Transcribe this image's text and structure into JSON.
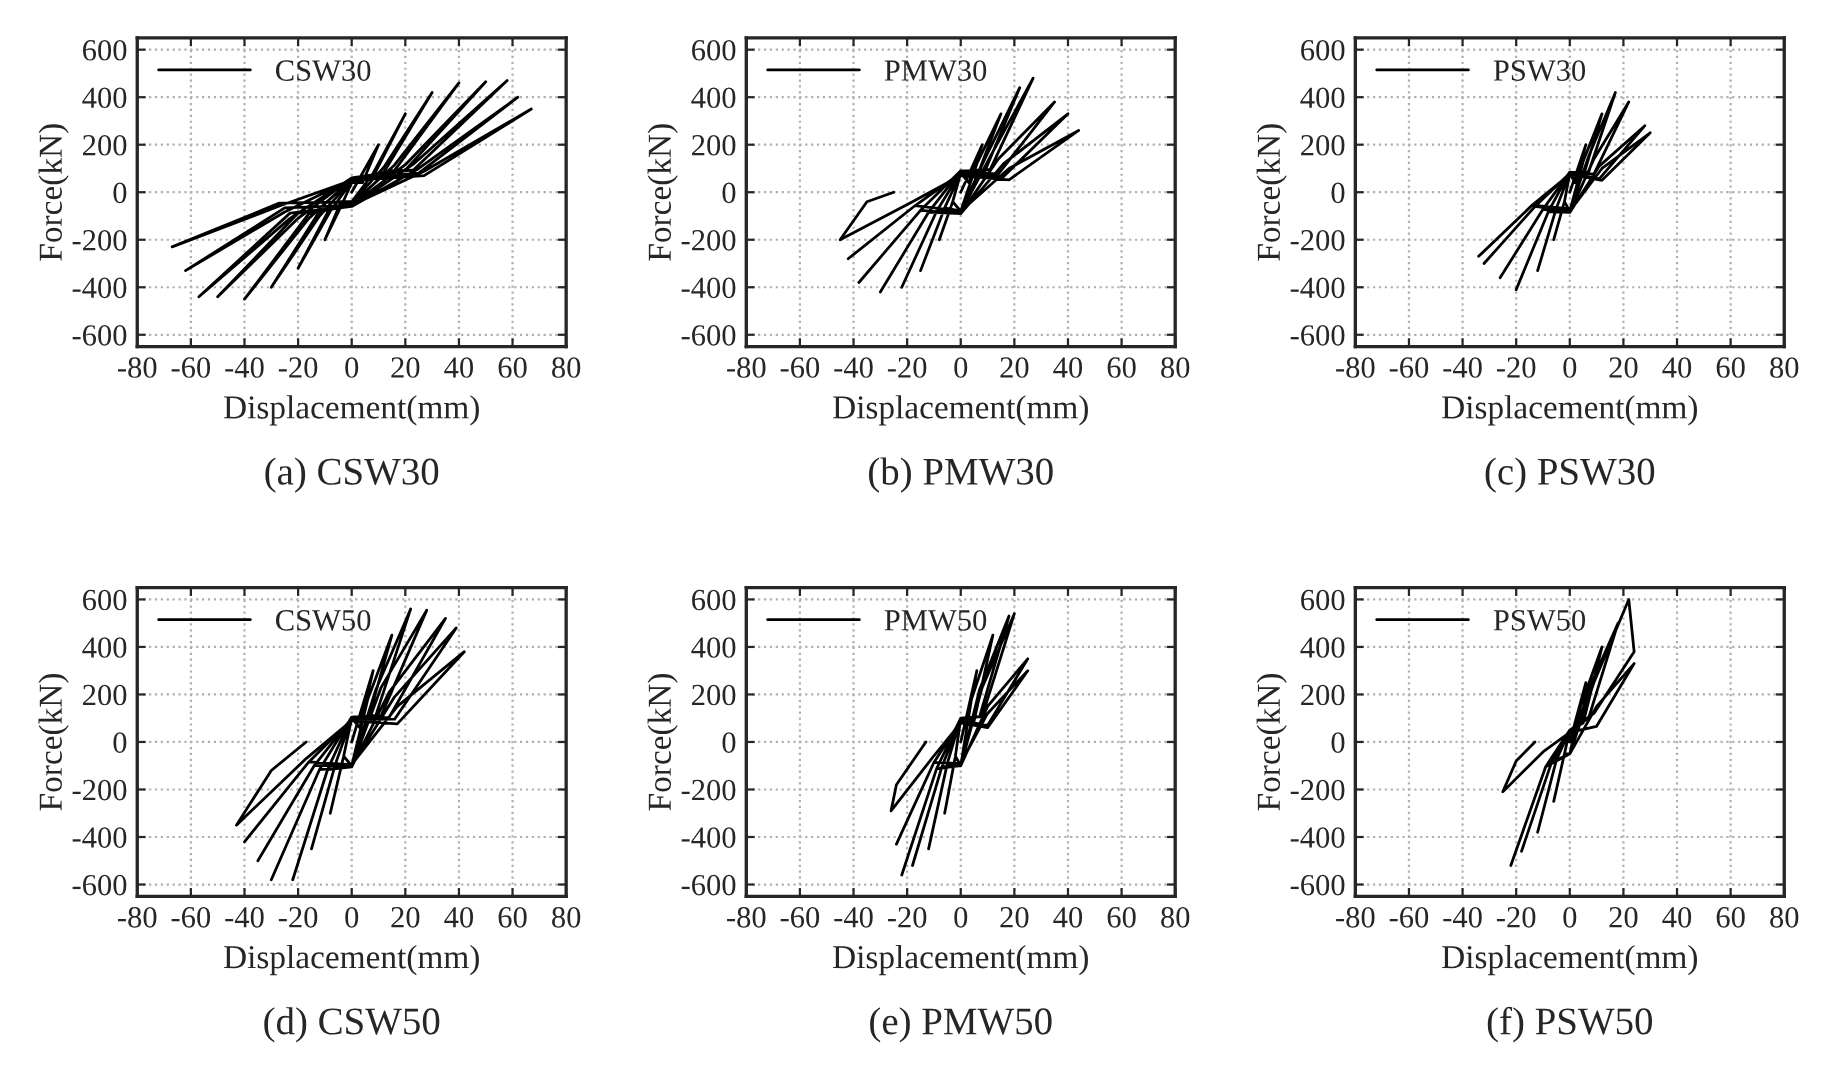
{
  "chart_data": [
    {
      "type": "line",
      "title": "(a) CSW30",
      "xlabel": "Displacement(mm)",
      "ylabel": "Force(kN)",
      "xlim": [
        -80,
        80
      ],
      "ylim": [
        -650,
        650
      ],
      "xticks": [
        -80,
        -60,
        -40,
        -20,
        0,
        20,
        40,
        60,
        80
      ],
      "yticks": [
        -600,
        -400,
        -200,
        0,
        200,
        400,
        600
      ],
      "grid": true,
      "legend": "top left",
      "line_style": "solid",
      "series": [
        {
          "name": "CSW30",
          "color": "#000000",
          "x": [
            0,
            10,
            4,
            0,
            -4,
            -10,
            -4,
            0,
            8,
            20,
            8,
            0,
            -8,
            -20,
            -8,
            0,
            12,
            30,
            12,
            0,
            -12,
            -30,
            -12,
            0,
            16,
            40,
            16,
            0,
            -16,
            -40,
            -16,
            0,
            20,
            50,
            20,
            0,
            -20,
            -50,
            -20,
            0,
            23,
            58,
            23,
            0,
            -23,
            -57,
            -23,
            0,
            25,
            62,
            25,
            0,
            -25,
            -62,
            -25,
            0,
            27,
            67,
            27,
            0,
            -27,
            -67,
            -27,
            0
          ],
          "values": [
            0,
            200,
            40,
            40,
            -60,
            -200,
            -40,
            -40,
            80,
            330,
            66,
            45,
            -80,
            -320,
            -64,
            -45,
            105,
            420,
            84,
            50,
            -100,
            -400,
            -80,
            -50,
            115,
            460,
            92,
            55,
            -110,
            -450,
            -90,
            -55,
            116,
            465,
            93,
            60,
            -110,
            -440,
            -88,
            -60,
            118,
            470,
            94,
            60,
            -110,
            -440,
            -88,
            -60,
            100,
            400,
            80,
            55,
            -83,
            -330,
            -66,
            -55,
            88,
            350,
            70,
            50,
            -58,
            -230,
            -46,
            -40
          ]
        }
      ]
    },
    {
      "type": "line",
      "title": "(b) PMW30",
      "xlabel": "Displacement(mm)",
      "ylabel": "Force(kN)",
      "xlim": [
        -80,
        80
      ],
      "ylim": [
        -650,
        650
      ],
      "xticks": [
        -80,
        -60,
        -40,
        -20,
        0,
        20,
        40,
        60,
        80
      ],
      "yticks": [
        -600,
        -400,
        -200,
        0,
        200,
        400,
        600
      ],
      "grid": true,
      "legend": "top left",
      "line_style": "solid",
      "series": [
        {
          "name": "PMW30",
          "color": "#000000",
          "x": [
            0,
            8,
            3,
            0,
            -3,
            -8,
            -3,
            0,
            6,
            15,
            6,
            0,
            -6,
            -15,
            -6,
            0,
            9,
            22,
            9,
            0,
            -9,
            -22,
            -9,
            0,
            11,
            27,
            11,
            0,
            -12,
            -30,
            -12,
            0,
            14,
            35,
            14,
            0,
            -15,
            -38,
            -15,
            0,
            16,
            40,
            16,
            0,
            -17,
            -42,
            -17,
            0,
            18,
            44,
            18,
            0,
            -18,
            -45,
            -35,
            -25
          ],
          "values": [
            0,
            200,
            40,
            80,
            -40,
            -200,
            -40,
            -80,
            120,
            330,
            66,
            80,
            -66,
            -330,
            -66,
            -80,
            140,
            440,
            88,
            85,
            -80,
            -400,
            -80,
            -85,
            150,
            480,
            96,
            90,
            -84,
            -420,
            -84,
            -90,
            140,
            380,
            76,
            90,
            -76,
            -380,
            -76,
            -90,
            120,
            330,
            66,
            80,
            -56,
            -280,
            -56,
            -80,
            100,
            260,
            52,
            70,
            -40,
            -200,
            -40,
            0
          ]
        }
      ]
    },
    {
      "type": "line",
      "title": "(c) PSW30",
      "xlabel": "Displacement(mm)",
      "ylabel": "Force(kN)",
      "xlim": [
        -80,
        80
      ],
      "ylim": [
        -650,
        650
      ],
      "xticks": [
        -80,
        -60,
        -40,
        -20,
        0,
        20,
        40,
        60,
        80
      ],
      "yticks": [
        -600,
        -400,
        -200,
        0,
        200,
        400,
        600
      ],
      "grid": true,
      "legend": "top left",
      "line_style": "solid",
      "series": [
        {
          "name": "PSW30",
          "color": "#000000",
          "x": [
            0,
            6,
            2,
            0,
            -2,
            -6,
            -2,
            0,
            5,
            12,
            5,
            0,
            -5,
            -12,
            -5,
            0,
            7,
            17,
            7,
            0,
            -8,
            -20,
            -8,
            0,
            9,
            22,
            9,
            0,
            -10,
            -26,
            -10,
            0,
            11,
            28,
            11,
            0,
            -13,
            -32,
            -13,
            0,
            12,
            30,
            12,
            0,
            -14,
            -34,
            -14,
            0
          ],
          "values": [
            0,
            200,
            40,
            80,
            -40,
            -200,
            -40,
            -80,
            130,
            330,
            66,
            80,
            -66,
            -330,
            -66,
            -80,
            150,
            420,
            84,
            85,
            -82,
            -410,
            -82,
            -85,
            140,
            380,
            76,
            85,
            -72,
            -360,
            -72,
            -85,
            110,
            280,
            56,
            80,
            -60,
            -300,
            -60,
            -80,
            100,
            250,
            50,
            75,
            -54,
            -270,
            -54,
            -70
          ]
        }
      ]
    },
    {
      "type": "line",
      "title": "(d) CSW50",
      "xlabel": "Displacement(mm)",
      "ylabel": "Force(kN)",
      "xlim": [
        -80,
        80
      ],
      "ylim": [
        -650,
        650
      ],
      "xticks": [
        -80,
        -60,
        -40,
        -20,
        0,
        20,
        40,
        60,
        80
      ],
      "yticks": [
        -600,
        -400,
        -200,
        0,
        200,
        400,
        600
      ],
      "grid": true,
      "legend": "top left",
      "line_style": "solid",
      "series": [
        {
          "name": "CSW50",
          "color": "#000000",
          "x": [
            0,
            8,
            3,
            0,
            -3,
            -8,
            -3,
            0,
            6,
            15,
            6,
            0,
            -6,
            -15,
            -6,
            0,
            9,
            22,
            9,
            0,
            -9,
            -22,
            -9,
            0,
            11,
            28,
            11,
            0,
            -12,
            -30,
            -12,
            0,
            14,
            35,
            14,
            0,
            -14,
            -35,
            -14,
            0,
            16,
            39,
            16,
            0,
            -16,
            -40,
            -16,
            0,
            17,
            42,
            17,
            0,
            -17,
            -43,
            -30,
            -17
          ],
          "values": [
            0,
            300,
            60,
            100,
            -60,
            -300,
            -60,
            -100,
            180,
            450,
            90,
            100,
            -90,
            -450,
            -90,
            -100,
            220,
            560,
            112,
            105,
            -116,
            -580,
            -116,
            -105,
            230,
            555,
            111,
            105,
            -116,
            -580,
            -116,
            -105,
            210,
            520,
            104,
            100,
            -100,
            -500,
            -100,
            -100,
            190,
            480,
            96,
            95,
            -84,
            -420,
            -84,
            -95,
            150,
            380,
            76,
            90,
            -70,
            -350,
            -120,
            0
          ]
        }
      ]
    },
    {
      "type": "line",
      "title": "(e) PMW50",
      "xlabel": "Displacement(mm)",
      "ylabel": "Force(kN)",
      "xlim": [
        -80,
        80
      ],
      "ylim": [
        -650,
        650
      ],
      "xticks": [
        -80,
        -60,
        -40,
        -20,
        0,
        20,
        40,
        60,
        80
      ],
      "yticks": [
        -600,
        -400,
        -200,
        0,
        200,
        400,
        600
      ],
      "grid": true,
      "legend": "top left",
      "line_style": "solid",
      "series": [
        {
          "name": "PMW50",
          "color": "#000000",
          "x": [
            0,
            6,
            2,
            0,
            -2,
            -6,
            -2,
            0,
            4,
            12,
            5,
            0,
            -5,
            -12,
            -5,
            0,
            7,
            18,
            7,
            0,
            -7,
            -18,
            -7,
            0,
            8,
            20,
            8,
            0,
            -9,
            -22,
            -9,
            0,
            10,
            25,
            10,
            0,
            -10,
            -24,
            -10,
            0,
            10,
            25,
            10,
            0,
            -10,
            -26,
            -24,
            -13
          ],
          "values": [
            0,
            300,
            60,
            100,
            -60,
            -300,
            -60,
            -100,
            180,
            450,
            90,
            100,
            -90,
            -450,
            -90,
            -100,
            220,
            530,
            106,
            100,
            -104,
            -520,
            -104,
            -100,
            230,
            540,
            108,
            100,
            -112,
            -560,
            -112,
            -100,
            150,
            350,
            70,
            90,
            -86,
            -430,
            -86,
            -90,
            120,
            300,
            60,
            80,
            -58,
            -290,
            -180,
            0
          ]
        }
      ]
    },
    {
      "type": "line",
      "title": "(f) PSW50",
      "xlabel": "Displacement(mm)",
      "ylabel": "Force(kN)",
      "xlim": [
        -80,
        80
      ],
      "ylim": [
        -650,
        650
      ],
      "xticks": [
        -80,
        -60,
        -40,
        -20,
        0,
        20,
        40,
        60,
        80
      ],
      "yticks": [
        -600,
        -400,
        -200,
        0,
        200,
        400,
        600
      ],
      "grid": true,
      "legend": "top left",
      "line_style": "solid",
      "series": [
        {
          "name": "PSW50",
          "color": "#000000",
          "x": [
            0,
            6,
            2,
            0,
            -2,
            -6,
            -2,
            0,
            4,
            12,
            5,
            0,
            -5,
            -12,
            -5,
            0,
            7,
            18,
            7,
            0,
            -7,
            -18,
            -7,
            0,
            9,
            22,
            24,
            9,
            0,
            -9,
            -22,
            -9,
            0,
            10,
            24,
            10,
            0,
            -10,
            -25,
            -20,
            -13
          ],
          "values": [
            0,
            250,
            50,
            50,
            -50,
            -250,
            -50,
            -50,
            150,
            400,
            80,
            50,
            -76,
            -380,
            -76,
            -50,
            220,
            500,
            100,
            50,
            -92,
            -460,
            -92,
            -50,
            250,
            600,
            380,
            120,
            50,
            -104,
            -520,
            -104,
            -50,
            150,
            330,
            66,
            40,
            -42,
            -210,
            -80,
            0
          ]
        }
      ]
    }
  ]
}
